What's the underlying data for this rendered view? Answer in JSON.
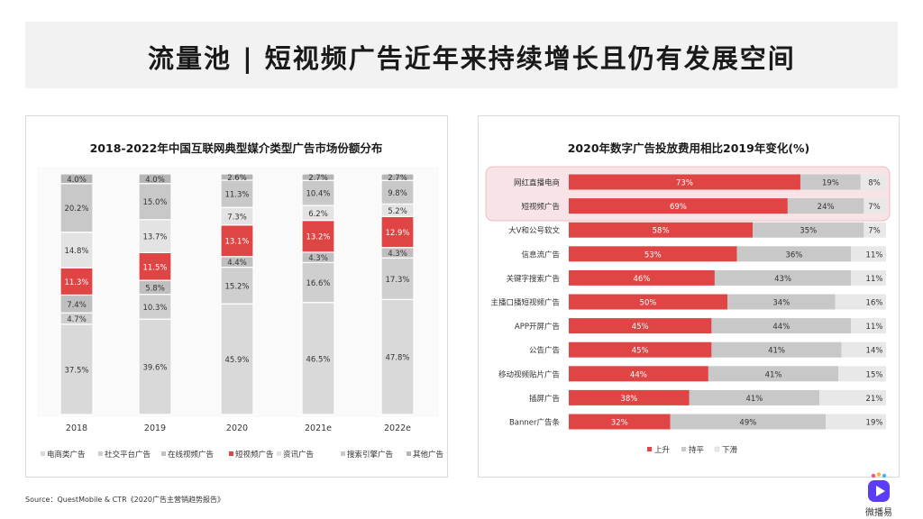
{
  "page": {
    "title": "流量池 | 短视频广告近年来持续增长且仍有发展空间",
    "source": "Source：QuestMobile & CTR《2020广告主营销趋势报告》",
    "logo_text": "微播易",
    "colors": {
      "red": "#e04545",
      "gray_dark": "#bfbfbf",
      "gray_mid": "#cccccc",
      "gray_light": "#dcdcdc",
      "panel_border": "#d9d9d9"
    }
  },
  "chart_data": [
    {
      "type": "bar",
      "stacked": true,
      "orientation": "vertical",
      "title": "2018-2022年中国互联网典型媒介类型广告市场份额分布",
      "categories": [
        "2018",
        "2019",
        "2020",
        "2021e",
        "2022e"
      ],
      "series": [
        {
          "name": "电商类广告",
          "color": "#d9d9d9",
          "values": [
            37.5,
            39.6,
            45.9,
            46.5,
            47.8
          ]
        },
        {
          "name": "社交平台广告",
          "color": "#cfcfcf",
          "values": [
            4.7,
            10.3,
            15.2,
            16.6,
            17.3
          ]
        },
        {
          "name": "在线视频广告",
          "color": "#bfbfbf",
          "values": [
            7.4,
            5.8,
            4.4,
            4.3,
            4.3
          ]
        },
        {
          "name": "短视频广告",
          "color": "#e04545",
          "values": [
            11.3,
            11.5,
            13.1,
            13.2,
            12.9
          ]
        },
        {
          "name": "资讯广告",
          "color": "#e3e3e3",
          "values": [
            14.8,
            13.7,
            7.3,
            6.2,
            5.2
          ]
        },
        {
          "name": "搜索引擎广告",
          "color": "#c8c8c8",
          "values": [
            20.2,
            15.0,
            11.3,
            10.4,
            9.8
          ]
        },
        {
          "name": "其他广告",
          "color": "#b5b5b5",
          "values": [
            4.0,
            4.0,
            2.6,
            2.7,
            2.7
          ]
        }
      ],
      "labels": [
        [
          "37.5%",
          "4.7%",
          "7.4%",
          "11.3%",
          "14.8%",
          "20.2%",
          "4.0%"
        ],
        [
          "39.6%",
          "10.3%",
          "5.8%",
          "11.5%",
          "13.7%",
          "15.0%",
          "4.0%"
        ],
        [
          "45.9%",
          "15.2%",
          "4.4%",
          "13.1%",
          "7.3%",
          "11.3%",
          "2.6%"
        ],
        [
          "46.5%",
          "16.6%",
          "4.3%",
          "13.2%",
          "6.2%",
          "10.4%",
          "2.7%"
        ],
        [
          "47.8%",
          "17.3%",
          "4.3%",
          "12.9%",
          "5.2%",
          "9.8%",
          "2.7%"
        ]
      ],
      "legend_position": "bottom"
    },
    {
      "type": "bar",
      "stacked": true,
      "orientation": "horizontal",
      "title": "2020年数字广告投放费用相比2019年变化(%)",
      "categories": [
        "网红直播电商",
        "短视频广告",
        "大V和公号软文",
        "信息流广告",
        "关键字搜索广告",
        "主播口播短视频广告",
        "APP开屏广告",
        "公告广告",
        "移动视频贴片广告",
        "插屏广告",
        "Banner广告条"
      ],
      "series": [
        {
          "name": "上升",
          "color": "#e04545",
          "values": [
            73,
            69,
            58,
            53,
            46,
            50,
            45,
            45,
            44,
            38,
            32
          ]
        },
        {
          "name": "持平",
          "color": "#c8c8c8",
          "values": [
            19,
            24,
            35,
            36,
            43,
            34,
            44,
            41,
            41,
            41,
            49
          ]
        },
        {
          "name": "下滑",
          "color": "#e8e8e8",
          "values": [
            8,
            7,
            7,
            11,
            11,
            16,
            11,
            14,
            15,
            21,
            19
          ]
        }
      ],
      "labels": [
        [
          "73%",
          "19%",
          "8%"
        ],
        [
          "69%",
          "24%",
          "7%"
        ],
        [
          "58%",
          "35%",
          "7%"
        ],
        [
          "53%",
          "36%",
          "11%"
        ],
        [
          "46%",
          "43%",
          "11%"
        ],
        [
          "50%",
          "34%",
          "16%"
        ],
        [
          "45%",
          "44%",
          "11%"
        ],
        [
          "45%",
          "41%",
          "14%"
        ],
        [
          "44%",
          "41%",
          "15%"
        ],
        [
          "38%",
          "41%",
          "21%"
        ],
        [
          "32%",
          "49%",
          "19%"
        ]
      ],
      "highlight_rows": [
        0,
        1
      ],
      "highlight_color": "#f8e4e6",
      "legend_position": "bottom"
    }
  ]
}
